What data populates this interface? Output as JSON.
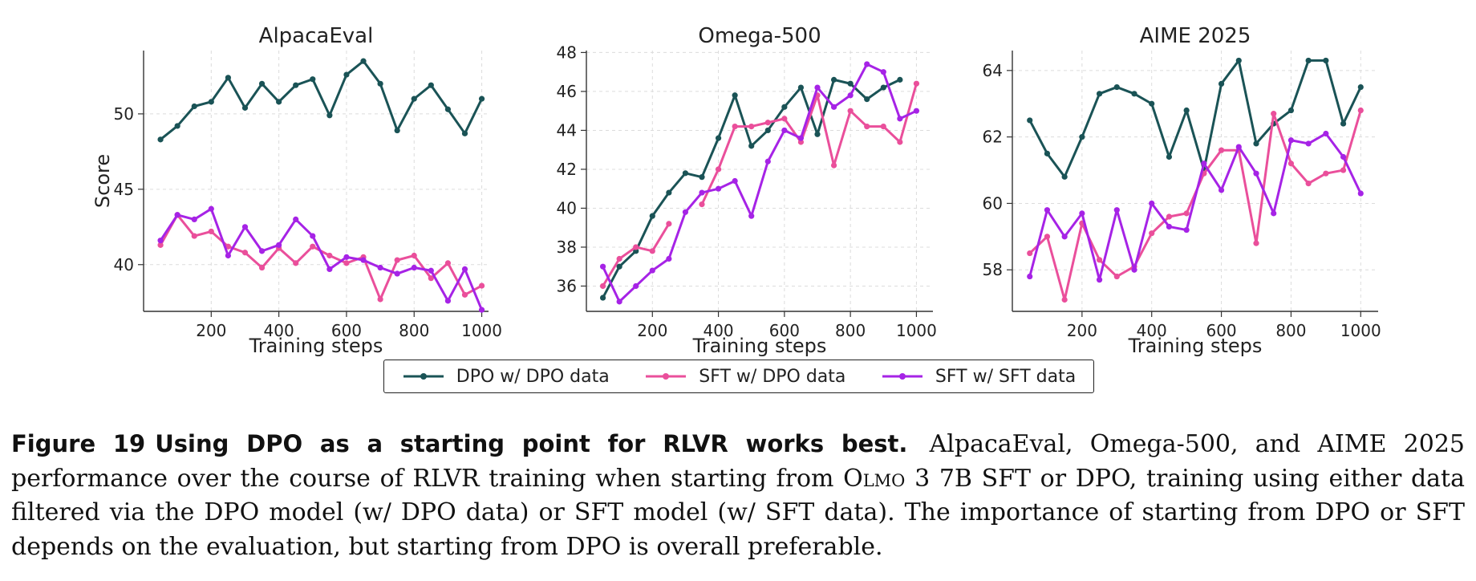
{
  "chart_data": [
    {
      "type": "line",
      "title": "AlpacaEval",
      "xlabel": "Training steps",
      "ylabel": "Score",
      "xlim": [
        0,
        1020
      ],
      "ylim": [
        36.9,
        54.2
      ],
      "xticks": [
        200,
        400,
        600,
        800,
        1000
      ],
      "yticks": [
        40,
        45,
        50
      ],
      "grid": true,
      "x": [
        50,
        100,
        150,
        200,
        250,
        300,
        350,
        400,
        450,
        500,
        550,
        600,
        650,
        700,
        750,
        800,
        850,
        900,
        950,
        1000
      ],
      "series": [
        {
          "name": "DPO w/ DPO data",
          "values": [
            48.3,
            49.2,
            50.5,
            50.8,
            52.4,
            50.4,
            52.0,
            50.8,
            51.9,
            52.3,
            49.9,
            52.6,
            53.5,
            52.0,
            48.9,
            51.0,
            51.9,
            50.3,
            48.7,
            51.0
          ]
        },
        {
          "name": "SFT w/ DPO data",
          "values": [
            41.3,
            43.3,
            41.9,
            42.2,
            41.2,
            40.8,
            39.8,
            41.1,
            40.1,
            41.2,
            40.6,
            40.1,
            40.5,
            37.7,
            40.3,
            40.6,
            39.1,
            40.1,
            38.0,
            38.6
          ]
        },
        {
          "name": "SFT w/ SFT data",
          "values": [
            41.6,
            43.3,
            43.0,
            43.7,
            40.6,
            42.5,
            40.9,
            41.3,
            43.0,
            41.9,
            39.7,
            40.5,
            40.3,
            39.8,
            39.4,
            39.8,
            39.6,
            37.6,
            39.7,
            37.0
          ]
        }
      ]
    },
    {
      "type": "line",
      "title": "Omega-500",
      "xlabel": "Training steps",
      "ylabel": "",
      "xlim": [
        0,
        1050
      ],
      "ylim": [
        34.7,
        48.1
      ],
      "xticks": [
        200,
        400,
        600,
        800,
        1000
      ],
      "yticks": [
        36,
        38,
        40,
        42,
        44,
        46,
        48
      ],
      "grid": true,
      "x": [
        50,
        100,
        150,
        200,
        250,
        300,
        350,
        400,
        450,
        500,
        550,
        600,
        650,
        700,
        750,
        800,
        850,
        900,
        950,
        1000
      ],
      "series": [
        {
          "name": "DPO w/ DPO data",
          "x": [
            50,
            100,
            150,
            200,
            250,
            300,
            350,
            400,
            450,
            500,
            550,
            600,
            650,
            700,
            750,
            800,
            850,
            900,
            950
          ],
          "values": [
            35.4,
            37.0,
            37.8,
            39.6,
            40.8,
            41.8,
            41.6,
            43.6,
            45.8,
            43.2,
            44.0,
            45.2,
            46.2,
            43.8,
            46.6,
            46.4,
            45.6,
            46.2,
            46.6
          ]
        },
        {
          "name": "SFT w/ DPO data",
          "values": [
            36.0,
            37.4,
            38.0,
            37.8,
            39.2,
            null,
            40.2,
            42.0,
            44.2,
            44.2,
            44.4,
            44.6,
            43.4,
            45.8,
            42.2,
            45.0,
            44.2,
            44.2,
            43.4,
            46.4
          ]
        },
        {
          "name": "SFT w/ SFT data",
          "values": [
            37.0,
            35.2,
            36.0,
            36.8,
            37.4,
            39.8,
            40.8,
            41.0,
            41.4,
            39.6,
            42.4,
            44.0,
            43.6,
            46.2,
            45.2,
            45.8,
            47.4,
            47.0,
            44.6,
            45.0
          ]
        }
      ]
    },
    {
      "type": "line",
      "title": "AIME 2025",
      "xlabel": "Training steps",
      "ylabel": "",
      "xlim": [
        0,
        1050
      ],
      "ylim": [
        56.75,
        64.6
      ],
      "xticks": [
        200,
        400,
        600,
        800,
        1000
      ],
      "yticks": [
        58,
        60,
        62,
        64
      ],
      "grid": true,
      "x": [
        50,
        100,
        150,
        200,
        250,
        300,
        350,
        400,
        450,
        500,
        550,
        600,
        650,
        700,
        750,
        800,
        850,
        900,
        950,
        1000
      ],
      "series": [
        {
          "name": "DPO w/ DPO data",
          "values": [
            62.5,
            61.5,
            60.8,
            62.0,
            63.3,
            63.5,
            63.3,
            63.0,
            61.4,
            62.8,
            61.0,
            63.6,
            64.3,
            61.8,
            62.4,
            62.8,
            64.3,
            64.3,
            62.4,
            63.5
          ]
        },
        {
          "name": "SFT w/ DPO data",
          "values": [
            58.5,
            59.0,
            57.1,
            59.4,
            58.3,
            57.8,
            58.1,
            59.1,
            59.6,
            59.7,
            60.9,
            61.6,
            61.6,
            58.8,
            62.7,
            61.2,
            60.6,
            60.9,
            61.0,
            62.8
          ]
        },
        {
          "name": "SFT w/ SFT data",
          "values": [
            57.8,
            59.8,
            59.0,
            59.7,
            57.7,
            59.8,
            58.0,
            60.0,
            59.3,
            59.2,
            61.2,
            60.4,
            61.7,
            60.9,
            59.7,
            61.9,
            61.8,
            62.1,
            61.4,
            60.3
          ]
        }
      ]
    }
  ],
  "colors": {
    "DPO w/ DPO data": "#1a5356",
    "SFT w/ DPO data": "#ea4f9b",
    "SFT w/ SFT data": "#a623e6"
  },
  "legend": {
    "items": [
      {
        "label": "DPO w/ DPO data",
        "color": "#1a5356"
      },
      {
        "label": "SFT w/ DPO data",
        "color": "#ea4f9b"
      },
      {
        "label": "SFT w/ SFT data",
        "color": "#a623e6"
      }
    ]
  },
  "caption": {
    "figure_number": "Figure 19",
    "figure_title": "Using DPO as a starting point for RLVR works best.",
    "text_part1": " AlpacaEval, Omega-500, and AIME 2025 performance over the course of RLVR training when starting from ",
    "model_name": "Olmo",
    "text_part2": " 3 7B SFT or DPO, training using either data filtered via the DPO model (w/ DPO data) or SFT model (w/ SFT data). The importance of starting from DPO or SFT depends on the evaluation, but starting from DPO is overall preferable."
  }
}
